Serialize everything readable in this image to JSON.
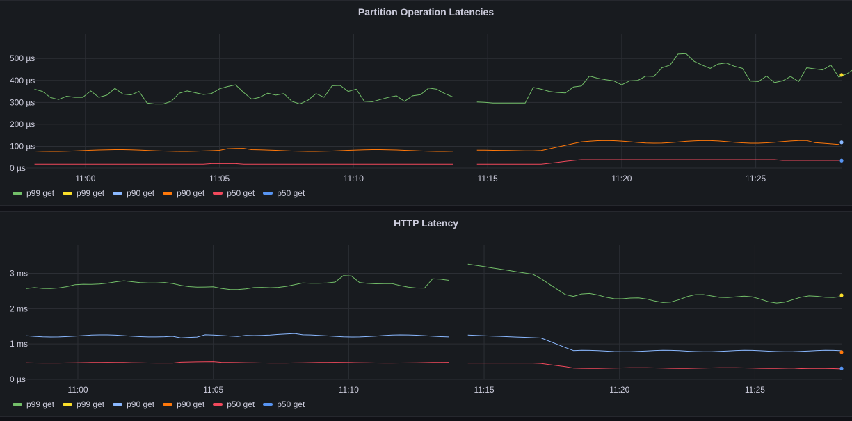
{
  "chart_data": [
    {
      "type": "line",
      "title": "Partition Operation Latencies",
      "xticks": [
        "11:00",
        "11:05",
        "11:10",
        "11:15",
        "11:20",
        "11:25"
      ],
      "yticks": [
        "0 µs",
        "100 µs",
        "200 µs",
        "300 µs",
        "400 µs",
        "500 µs"
      ],
      "xlim_minutes": [
        -2.2,
        28.2
      ],
      "ylim": [
        0,
        580
      ],
      "gap_minutes": [
        13.8,
        14.4
      ],
      "grid": true,
      "legend_position": "bottom-left",
      "series": [
        {
          "name": "p99 get",
          "color": "#73bf69",
          "points": [
            [
              -1.9,
              360
            ],
            [
              -1.6,
              350
            ],
            [
              -1.3,
              322
            ],
            [
              -1.0,
              313
            ],
            [
              -0.7,
              328
            ],
            [
              -0.4,
              323
            ],
            [
              -0.1,
              323
            ],
            [
              0.2,
              352
            ],
            [
              0.5,
              323
            ],
            [
              0.8,
              333
            ],
            [
              1.1,
              364
            ],
            [
              1.4,
              338
            ],
            [
              1.7,
              334
            ],
            [
              2.0,
              350
            ],
            [
              2.3,
              297
            ],
            [
              2.6,
              293
            ],
            [
              2.9,
              293
            ],
            [
              3.2,
              305
            ],
            [
              3.5,
              342
            ],
            [
              3.8,
              352
            ],
            [
              4.1,
              344
            ],
            [
              4.4,
              336
            ],
            [
              4.7,
              340
            ],
            [
              5.0,
              362
            ],
            [
              5.3,
              372
            ],
            [
              5.6,
              380
            ],
            [
              5.9,
              345
            ],
            [
              6.2,
              315
            ],
            [
              6.5,
              323
            ],
            [
              6.8,
              342
            ],
            [
              7.1,
              333
            ],
            [
              7.4,
              340
            ],
            [
              7.7,
              305
            ],
            [
              8.0,
              293
            ],
            [
              8.3,
              310
            ],
            [
              8.6,
              340
            ],
            [
              8.9,
              323
            ],
            [
              9.2,
              376
            ],
            [
              9.5,
              377
            ],
            [
              9.8,
              350
            ],
            [
              10.1,
              360
            ],
            [
              10.4,
              305
            ],
            [
              10.7,
              303
            ],
            [
              11.0,
              313
            ],
            [
              11.3,
              323
            ],
            [
              11.6,
              330
            ],
            [
              11.9,
              305
            ],
            [
              12.2,
              330
            ],
            [
              12.5,
              335
            ],
            [
              12.8,
              365
            ],
            [
              13.1,
              360
            ],
            [
              13.4,
              340
            ],
            [
              13.7,
              325
            ],
            [
              14.0,
              306
            ],
            [
              14.3,
              298
            ],
            [
              14.6,
              302
            ],
            [
              14.9,
              300
            ],
            [
              15.2,
              297
            ],
            [
              15.5,
              297
            ],
            [
              15.8,
              297
            ],
            [
              16.1,
              297
            ],
            [
              16.4,
              297
            ],
            [
              16.7,
              368
            ],
            [
              17.0,
              360
            ],
            [
              17.3,
              350
            ],
            [
              17.6,
              345
            ],
            [
              17.9,
              343
            ],
            [
              18.2,
              370
            ],
            [
              18.5,
              375
            ],
            [
              18.8,
              420
            ],
            [
              19.1,
              410
            ],
            [
              19.4,
              403
            ],
            [
              19.7,
              398
            ],
            [
              20.0,
              380
            ],
            [
              20.3,
              398
            ],
            [
              20.6,
              400
            ],
            [
              20.9,
              420
            ],
            [
              21.2,
              418
            ],
            [
              21.5,
              458
            ],
            [
              21.8,
              470
            ],
            [
              22.1,
              520
            ],
            [
              22.4,
              522
            ],
            [
              22.7,
              487
            ],
            [
              23.0,
              470
            ],
            [
              23.3,
              455
            ],
            [
              23.6,
              475
            ],
            [
              23.9,
              480
            ],
            [
              24.2,
              465
            ],
            [
              24.5,
              455
            ],
            [
              24.8,
              397
            ],
            [
              25.1,
              395
            ],
            [
              25.4,
              420
            ],
            [
              25.7,
              390
            ],
            [
              26.0,
              398
            ],
            [
              26.3,
              418
            ],
            [
              26.6,
              395
            ],
            [
              26.9,
              458
            ],
            [
              27.2,
              453
            ],
            [
              27.5,
              448
            ],
            [
              27.8,
              470
            ],
            [
              28.1,
              415
            ],
            [
              28.4,
              430
            ],
            [
              28.7,
              455
            ]
          ]
        },
        {
          "name": "p99 get",
          "color": "#fade2a",
          "points": []
        },
        {
          "name": "p90 get",
          "color": "#8ab8ff",
          "points": []
        },
        {
          "name": "p90 get",
          "color": "#ff780a",
          "points": []
        },
        {
          "name": "p50 get",
          "color": "#f2495c",
          "points": []
        },
        {
          "name": "p50 get",
          "color": "#5794f2",
          "points": []
        }
      ]
    },
    {
      "type": "line",
      "title": "HTTP Latency",
      "xticks": [
        "11:00",
        "11:05",
        "11:10",
        "11:15",
        "11:20",
        "11:25"
      ],
      "yticks": [
        "0 µs",
        "1 ms",
        "2 ms",
        "3 ms"
      ],
      "xlim_minutes": [
        -1.9,
        28.2
      ],
      "ylim": [
        0,
        3.6
      ],
      "gap_minutes": [
        13.8,
        14.4
      ],
      "grid": true,
      "legend_position": "bottom-left",
      "series": [
        {
          "name": "p99 get",
          "color": "#73bf69",
          "points": []
        },
        {
          "name": "p99 get",
          "color": "#fade2a",
          "points": []
        },
        {
          "name": "p90 get",
          "color": "#8ab8ff",
          "points": []
        },
        {
          "name": "p90 get",
          "color": "#ff780a",
          "points": []
        },
        {
          "name": "p50 get",
          "color": "#f2495c",
          "points": []
        },
        {
          "name": "p50 get",
          "color": "#5794f2",
          "points": []
        }
      ]
    }
  ]
}
